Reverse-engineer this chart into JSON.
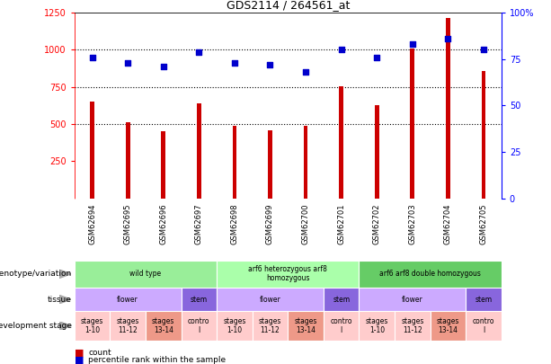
{
  "title": "GDS2114 / 264561_at",
  "samples": [
    "GSM62694",
    "GSM62695",
    "GSM62696",
    "GSM62697",
    "GSM62698",
    "GSM62699",
    "GSM62700",
    "GSM62701",
    "GSM62702",
    "GSM62703",
    "GSM62704",
    "GSM62705"
  ],
  "counts": [
    650,
    510,
    450,
    640,
    490,
    460,
    490,
    755,
    625,
    1010,
    1215,
    860
  ],
  "percentiles": [
    76,
    73,
    71,
    79,
    73,
    72,
    68,
    80,
    76,
    83,
    86,
    80
  ],
  "ylim_left": [
    0,
    1250
  ],
  "ylim_right": [
    0,
    100
  ],
  "yticks_left": [
    250,
    500,
    750,
    1000,
    1250
  ],
  "yticks_right": [
    0,
    25,
    50,
    75,
    100
  ],
  "bar_color": "#cc0000",
  "dot_color": "#0000cc",
  "dotted_line_values": [
    500,
    750,
    1000
  ],
  "genotype_row": {
    "label": "genotype/variation",
    "groups": [
      {
        "text": "wild type",
        "start": 0,
        "end": 4,
        "color": "#99ee99"
      },
      {
        "text": "arf6 heterozygous arf8\nhomozygous",
        "start": 4,
        "end": 8,
        "color": "#aaffaa"
      },
      {
        "text": "arf6 arf8 double homozygous",
        "start": 8,
        "end": 12,
        "color": "#66cc66"
      }
    ]
  },
  "tissue_row": {
    "label": "tissue",
    "groups": [
      {
        "text": "flower",
        "start": 0,
        "end": 3,
        "color": "#ccaaff"
      },
      {
        "text": "stem",
        "start": 3,
        "end": 4,
        "color": "#8866dd"
      },
      {
        "text": "flower",
        "start": 4,
        "end": 7,
        "color": "#ccaaff"
      },
      {
        "text": "stem",
        "start": 7,
        "end": 8,
        "color": "#8866dd"
      },
      {
        "text": "flower",
        "start": 8,
        "end": 11,
        "color": "#ccaaff"
      },
      {
        "text": "stem",
        "start": 11,
        "end": 12,
        "color": "#8866dd"
      }
    ]
  },
  "stage_row": {
    "label": "development stage",
    "groups": [
      {
        "text": "stages\n1-10",
        "start": 0,
        "end": 1,
        "color": "#ffcccc"
      },
      {
        "text": "stages\n11-12",
        "start": 1,
        "end": 2,
        "color": "#ffcccc"
      },
      {
        "text": "stages\n13-14",
        "start": 2,
        "end": 3,
        "color": "#ee9988"
      },
      {
        "text": "contro\nl",
        "start": 3,
        "end": 4,
        "color": "#ffcccc"
      },
      {
        "text": "stages\n1-10",
        "start": 4,
        "end": 5,
        "color": "#ffcccc"
      },
      {
        "text": "stages\n11-12",
        "start": 5,
        "end": 6,
        "color": "#ffcccc"
      },
      {
        "text": "stages\n13-14",
        "start": 6,
        "end": 7,
        "color": "#ee9988"
      },
      {
        "text": "contro\nl",
        "start": 7,
        "end": 8,
        "color": "#ffcccc"
      },
      {
        "text": "stages\n1-10",
        "start": 8,
        "end": 9,
        "color": "#ffcccc"
      },
      {
        "text": "stages\n11-12",
        "start": 9,
        "end": 10,
        "color": "#ffcccc"
      },
      {
        "text": "stages\n13-14",
        "start": 10,
        "end": 11,
        "color": "#ee9988"
      },
      {
        "text": "contro\nl",
        "start": 11,
        "end": 12,
        "color": "#ffcccc"
      }
    ]
  },
  "legend": [
    {
      "label": "count",
      "color": "#cc0000"
    },
    {
      "label": "percentile rank within the sample",
      "color": "#0000cc"
    }
  ],
  "background_color": "#ffffff",
  "xticklabel_bg": "#cccccc"
}
